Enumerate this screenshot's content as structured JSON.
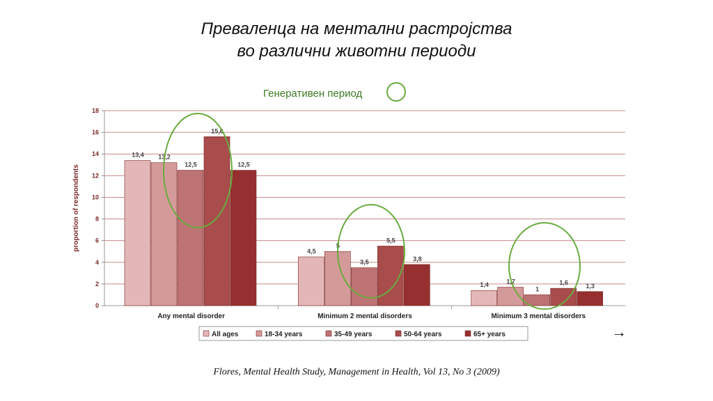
{
  "header": {
    "title_line1": "Преваленца на ментални  растројства",
    "title_line2": "во различни  животни  периоди"
  },
  "annotation": {
    "generative_label": "Генеративен период",
    "highlight_color": "#6aab3e"
  },
  "caption": "Flores, Mental Health Study,  Management in Health, Vol 13, No 3 (2009)",
  "chart_data": {
    "type": "bar",
    "title": "",
    "xlabel": "",
    "ylabel": "proportion of respondents",
    "ylim": [
      0,
      18
    ],
    "yticks": [
      0,
      2,
      4,
      6,
      8,
      10,
      12,
      14,
      16,
      18
    ],
    "grid": true,
    "legend_position": "bottom",
    "categories": [
      "Any mental disorder",
      "Minimum  2 mental disorders",
      "Minimum 3 mental disorders"
    ],
    "series": [
      {
        "name": "All ages",
        "values": [
          13.4,
          4.5,
          1.4
        ],
        "labels": [
          "13,4",
          "4,5",
          "1,4"
        ],
        "color": "#e3b7b7"
      },
      {
        "name": "18-34 years",
        "values": [
          13.2,
          5,
          1.7
        ],
        "labels": [
          "13,2",
          "5",
          "1,7"
        ],
        "color": "#d49a9a"
      },
      {
        "name": "35-49 years",
        "values": [
          12.5,
          3.5,
          1
        ],
        "labels": [
          "12,5",
          "3,5",
          "1"
        ],
        "color": "#bd7373"
      },
      {
        "name": "50-64 years",
        "values": [
          15.6,
          5.5,
          1.6
        ],
        "labels": [
          "15,6",
          "5,5",
          "1,6"
        ],
        "color": "#a84c4c"
      },
      {
        "name": "65+ years",
        "values": [
          12.5,
          3.8,
          1.3
        ],
        "labels": [
          "12,5",
          "3,8",
          "1,3"
        ],
        "color": "#962f2f"
      }
    ],
    "highlighted_series": "50-64 years",
    "arrow": "→"
  }
}
